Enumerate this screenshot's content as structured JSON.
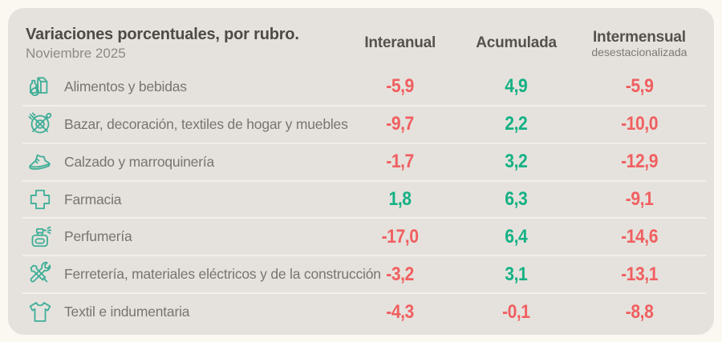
{
  "card": {
    "title": "Variaciones porcentuales, por rubro.",
    "subtitle": "Noviembre 2025",
    "columns": [
      {
        "label": "Interanual",
        "sublabel": ""
      },
      {
        "label": "Acumulada",
        "sublabel": ""
      },
      {
        "label": "Intermensual",
        "sublabel": "desestacionalizada"
      }
    ],
    "rows": [
      {
        "icon": "groceries-icon",
        "label": "Alimentos y bebidas",
        "values": [
          "-5,9",
          "4,9",
          "-5,9"
        ]
      },
      {
        "icon": "tableware-icon",
        "label": "Bazar, decoración, textiles de hogar y muebles",
        "values": [
          "-9,7",
          "2,2",
          "-10,0"
        ]
      },
      {
        "icon": "shoe-icon",
        "label": "Calzado y marroquinería",
        "values": [
          "-1,7",
          "3,2",
          "-12,9"
        ]
      },
      {
        "icon": "pharmacy-cross-icon",
        "label": "Farmacia",
        "values": [
          "1,8",
          "6,3",
          "-9,1"
        ]
      },
      {
        "icon": "perfume-icon",
        "label": "Perfumería",
        "values": [
          "-17,0",
          "6,4",
          "-14,6"
        ]
      },
      {
        "icon": "tools-icon",
        "label": "Ferretería, materiales eléctricos y de la construcción",
        "values": [
          "-3,2",
          "3,1",
          "-13,1"
        ]
      },
      {
        "icon": "tshirt-icon",
        "label": "Textil e indumentaria",
        "values": [
          "-4,3",
          "-0,1",
          "-8,8"
        ]
      }
    ],
    "colors": {
      "positive": "#14b184",
      "negative": "#f05f60",
      "icon_teal": "#3fae97",
      "card_background": "#e5e2dd",
      "page_background": "#fbf8f1"
    }
  },
  "chart_data": {
    "type": "table",
    "title": "Variaciones porcentuales, por rubro.",
    "subtitle": "Noviembre 2025",
    "columns": [
      "Interanual",
      "Acumulada",
      "Intermensual desestacionalizada"
    ],
    "rows": [
      {
        "category": "Alimentos y bebidas",
        "values": [
          -5.9,
          4.9,
          -5.9
        ]
      },
      {
        "category": "Bazar, decoración, textiles de hogar y muebles",
        "values": [
          -9.7,
          2.2,
          -10.0
        ]
      },
      {
        "category": "Calzado y marroquinería",
        "values": [
          -1.7,
          3.2,
          -12.9
        ]
      },
      {
        "category": "Farmacia",
        "values": [
          1.8,
          6.3,
          -9.1
        ]
      },
      {
        "category": "Perfumería",
        "values": [
          -17.0,
          6.4,
          -14.6
        ]
      },
      {
        "category": "Ferretería, materiales eléctricos y de la construcción",
        "values": [
          -3.2,
          3.1,
          -13.1
        ]
      },
      {
        "category": "Textil e indumentaria",
        "values": [
          -4.3,
          -0.1,
          -8.8
        ]
      }
    ],
    "value_format": "decimal comma, one decimal place",
    "color_coding": "positive values green, negative values red"
  }
}
